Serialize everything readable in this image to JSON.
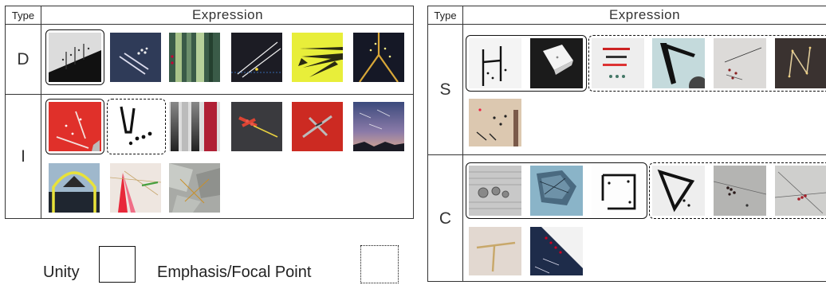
{
  "left_table": {
    "header_type": "Type",
    "header_expression": "Expression",
    "rows": [
      {
        "type": "D",
        "thumbnails": [
          "framed-dark-line-artwork",
          "blue-diagonal-lines-artwork",
          "green-vertical-stripes-artwork",
          "black-diagonal-lines-artwork",
          "yellow-black-rays-artwork",
          "dark-yellow-v-lines-artwork"
        ]
      },
      {
        "type": "I",
        "thumbnails": [
          "red-sticks-artwork",
          "black-v-dots-artwork",
          "grey-vertical-gradient-artwork",
          "dark-red-sticks-artwork",
          "red-plane-artwork",
          "starry-sky-artwork",
          "yellow-arch-artwork",
          "red-fan-lines-artwork",
          "silver-foil-artwork"
        ]
      }
    ]
  },
  "right_table": {
    "header_type": "Type",
    "header_expression": "Expression",
    "rows": [
      {
        "type": "S",
        "thumbnails": [
          "black-ladder-artwork",
          "white-shirt-artwork",
          "red-bars-artwork",
          "black-v-shape-artwork",
          "grey-line-dots-artwork",
          "dark-n-shape-artwork",
          "tan-dots-artwork"
        ]
      },
      {
        "type": "C",
        "thumbnails": [
          "newspaper-coins-artwork",
          "blue-crumpled-artwork",
          "black-frame-artwork",
          "black-triangle-artwork",
          "grey-red-dots-artwork",
          "grey-crossing-lines-artwork",
          "beige-sticks-artwork",
          "blue-diagonal-dots-artwork"
        ]
      }
    ]
  },
  "legend": {
    "unity_label": "Unity",
    "emphasis_label": "Emphasis/Focal Point"
  }
}
